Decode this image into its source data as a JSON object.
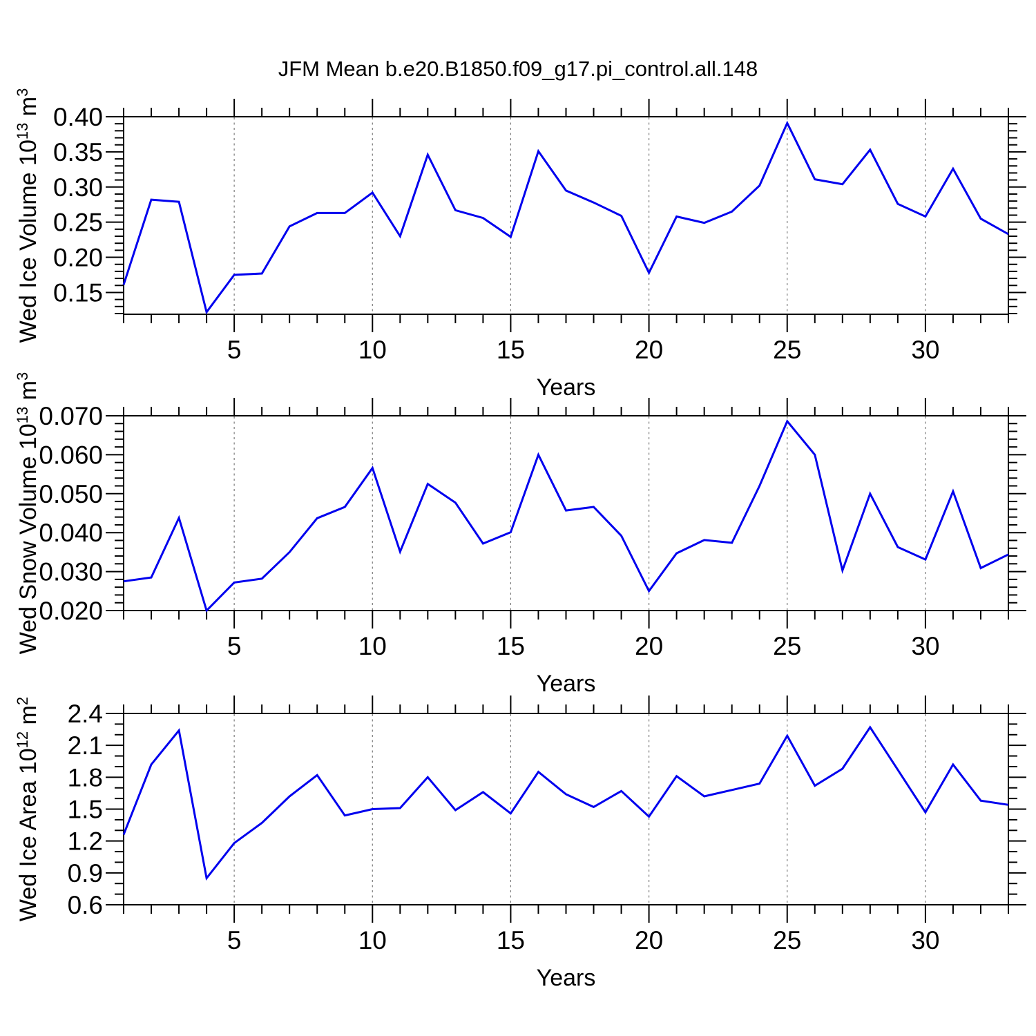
{
  "figure": {
    "title": "JFM Mean b.e20.B1850.f09_g17.pi_control.all.148"
  },
  "style": {
    "line_color": "#0000EE",
    "grid_color": "#7a7a7a",
    "frame_color": "#000000",
    "text_color": "#000000",
    "background": "#ffffff"
  },
  "chart_data": [
    {
      "type": "line",
      "title": "JFM Mean b.e20.B1850.f09_g17.pi_control.all.148",
      "ylabel": "Wed Ice Volume 10^13 m^3",
      "ylabel_parts": [
        {
          "t": "Wed Ice Volume 10"
        },
        {
          "sup": "13"
        },
        {
          "t": " m"
        },
        {
          "sup": "3"
        }
      ],
      "xlabel": "Years",
      "x": [
        1,
        2,
        3,
        4,
        5,
        6,
        7,
        8,
        9,
        10,
        11,
        12,
        13,
        14,
        15,
        16,
        17,
        18,
        19,
        20,
        21,
        22,
        23,
        24,
        25,
        26,
        27,
        28,
        29,
        30,
        31,
        32,
        33
      ],
      "values": [
        0.161,
        0.282,
        0.279,
        0.122,
        0.175,
        0.177,
        0.244,
        0.263,
        0.263,
        0.292,
        0.23,
        0.346,
        0.267,
        0.256,
        0.229,
        0.351,
        0.295,
        0.278,
        0.259,
        0.178,
        0.258,
        0.249,
        0.265,
        0.302,
        0.391,
        0.311,
        0.304,
        0.353,
        0.276,
        0.258,
        0.326,
        0.255,
        0.233
      ],
      "ylim": [
        0.119,
        0.4
      ],
      "yticks": {
        "values": [
          0.15,
          0.2,
          0.25,
          0.3,
          0.35,
          0.4
        ],
        "labels": [
          "0.15",
          "0.20",
          "0.25",
          "0.30",
          "0.35",
          "0.40"
        ]
      },
      "yminor_step": 0.01,
      "xlim": [
        1,
        33
      ],
      "xticks": [
        5,
        10,
        15,
        20,
        25,
        30
      ],
      "xminor_step": 1,
      "grid": "vertical-dashed"
    },
    {
      "type": "line",
      "title": "",
      "ylabel": "Wed Snow Volume 10^13 m^3",
      "ylabel_parts": [
        {
          "t": "Wed Snow Volume 10"
        },
        {
          "sup": "13"
        },
        {
          "t": " m"
        },
        {
          "sup": "3"
        }
      ],
      "xlabel": "Years",
      "x": [
        1,
        2,
        3,
        4,
        5,
        6,
        7,
        8,
        9,
        10,
        11,
        12,
        13,
        14,
        15,
        16,
        17,
        18,
        19,
        20,
        21,
        22,
        23,
        24,
        25,
        26,
        27,
        28,
        29,
        30,
        31,
        32,
        33
      ],
      "values": [
        0.0275,
        0.0285,
        0.0438,
        0.02,
        0.0272,
        0.0282,
        0.035,
        0.0437,
        0.0466,
        0.0566,
        0.0351,
        0.0525,
        0.0477,
        0.0372,
        0.0401,
        0.06,
        0.0457,
        0.0466,
        0.0392,
        0.025,
        0.0347,
        0.0381,
        0.0374,
        0.052,
        0.0686,
        0.06,
        0.0303,
        0.05,
        0.0363,
        0.0331,
        0.0506,
        0.0309,
        0.0344
      ],
      "ylim": [
        0.02,
        0.07
      ],
      "yticks": {
        "values": [
          0.02,
          0.03,
          0.04,
          0.05,
          0.06,
          0.07
        ],
        "labels": [
          "0.020",
          "0.030",
          "0.040",
          "0.050",
          "0.060",
          "0.070"
        ]
      },
      "yminor_step": 0.002,
      "xlim": [
        1,
        33
      ],
      "xticks": [
        5,
        10,
        15,
        20,
        25,
        30
      ],
      "xminor_step": 1,
      "grid": "vertical-dashed"
    },
    {
      "type": "line",
      "title": "",
      "ylabel": "Wed Ice Area 10^12 m^2",
      "ylabel_parts": [
        {
          "t": "Wed Ice Area 10"
        },
        {
          "sup": "12"
        },
        {
          "t": " m"
        },
        {
          "sup": "2"
        }
      ],
      "xlabel": "Years",
      "x": [
        1,
        2,
        3,
        4,
        5,
        6,
        7,
        8,
        9,
        10,
        11,
        12,
        13,
        14,
        15,
        16,
        17,
        18,
        19,
        20,
        21,
        22,
        23,
        24,
        25,
        26,
        27,
        28,
        29,
        30,
        31,
        32,
        33
      ],
      "values": [
        1.26,
        1.92,
        2.24,
        0.85,
        1.18,
        1.37,
        1.62,
        1.82,
        1.44,
        1.5,
        1.51,
        1.8,
        1.49,
        1.66,
        1.46,
        1.85,
        1.64,
        1.52,
        1.67,
        1.43,
        1.81,
        1.62,
        1.68,
        1.74,
        2.19,
        1.72,
        1.88,
        2.27,
        1.87,
        1.47,
        1.92,
        1.58,
        1.54
      ],
      "ylim": [
        0.6,
        2.4
      ],
      "yticks": {
        "values": [
          0.6,
          0.9,
          1.2,
          1.5,
          1.8,
          2.1,
          2.4
        ],
        "labels": [
          "0.6",
          "0.9",
          "1.2",
          "1.5",
          "1.8",
          "2.1",
          "2.4"
        ]
      },
      "yminor_step": 0.1,
      "xlim": [
        1,
        33
      ],
      "xticks": [
        5,
        10,
        15,
        20,
        25,
        30
      ],
      "xminor_step": 1,
      "grid": "vertical-dashed"
    }
  ]
}
